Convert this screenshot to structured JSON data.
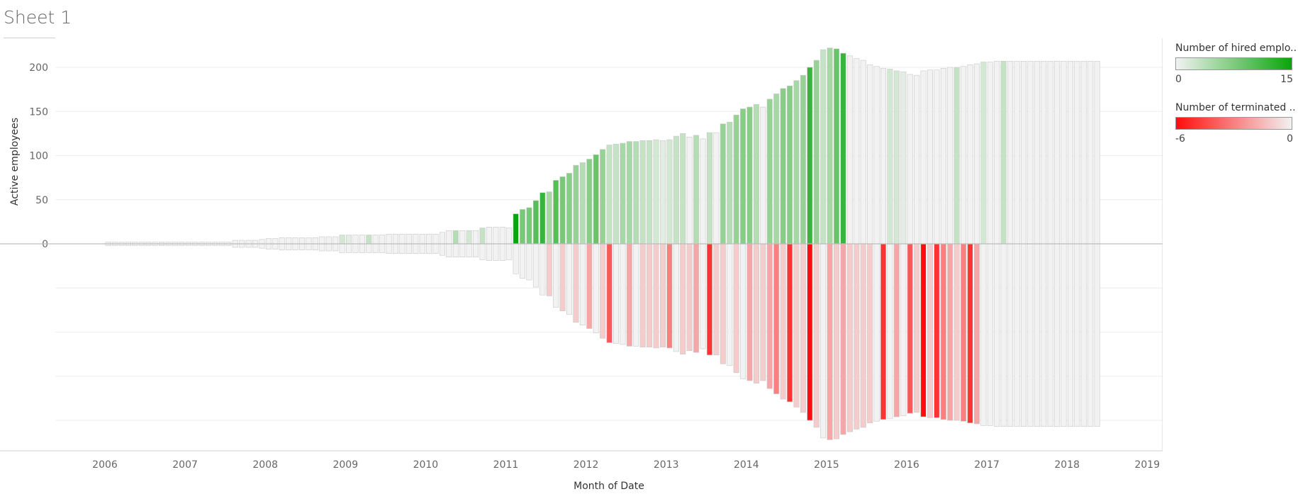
{
  "sheet": {
    "title": "Sheet 1"
  },
  "legends": {
    "hired": {
      "title": "Number of hired emplo..",
      "min_label": "0",
      "max_label": "15",
      "color_low": "#f2f2f2",
      "color_high": "#0aa50a"
    },
    "terminated": {
      "title": "Number of terminated ..",
      "min_label": "-6",
      "max_label": "0",
      "color_low": "#ff0d0d",
      "color_high": "#f2f2f2"
    }
  },
  "chart_data": {
    "type": "bar",
    "ylabel": "Active employees",
    "xlabel": "Month of Date",
    "y_ticks": [
      "200",
      "150",
      "100",
      "50",
      "0"
    ],
    "ylim": [
      -220,
      220
    ],
    "x_ticks": [
      "2006",
      "2007",
      "2008",
      "2009",
      "2010",
      "2011",
      "2012",
      "2013",
      "2014",
      "2015",
      "2016",
      "2017",
      "2018",
      "2019"
    ],
    "x_range_years": [
      2006,
      2019
    ],
    "start": "2006-01",
    "series": [
      {
        "name": "Number of hired employees",
        "color_scale": [
          "#f2f2f2",
          "#0aa50a"
        ],
        "range": [
          0,
          15
        ],
        "values": [
          0,
          0,
          0,
          0,
          0,
          0,
          0,
          0,
          0,
          0,
          0,
          0,
          0,
          0,
          0,
          0,
          0,
          0,
          0,
          0,
          0,
          0,
          0,
          0,
          0,
          0,
          0,
          0,
          0,
          0,
          0,
          0,
          0,
          0,
          0,
          0,
          0,
          0,
          0,
          0,
          0,
          0,
          0,
          0,
          0,
          0,
          0,
          0,
          0,
          0,
          0,
          0,
          0,
          0,
          0,
          0,
          0,
          0,
          0,
          0,
          0,
          0,
          0,
          0,
          0,
          0,
          0,
          0,
          0,
          0,
          0,
          0,
          0,
          0,
          0,
          0,
          0,
          0,
          0,
          0,
          0,
          0,
          0,
          0,
          0,
          0,
          0,
          0,
          0,
          0,
          0,
          0,
          0,
          0,
          0,
          0,
          0,
          0,
          0,
          0,
          0,
          0,
          0,
          0,
          0,
          0,
          0,
          0,
          0,
          0,
          0,
          0,
          0,
          0,
          0,
          0,
          0,
          0,
          0,
          0,
          0,
          0,
          0,
          0,
          0,
          0,
          0,
          0,
          0,
          0,
          0,
          0,
          0,
          0,
          0,
          0,
          0,
          0,
          0,
          0,
          0,
          0,
          0,
          0,
          0,
          0,
          0,
          0,
          0,
          0
        ]
      },
      {
        "name": "Number of terminated employees",
        "color_scale": [
          "#ff0d0d",
          "#f2f2f2"
        ],
        "range": [
          -6,
          0
        ],
        "values": []
      }
    ],
    "active_employees": [
      2,
      2,
      2,
      2,
      2,
      2,
      2,
      2,
      2,
      2,
      2,
      2,
      2,
      2,
      2,
      2,
      2,
      2,
      2,
      4,
      4,
      4,
      4,
      5,
      6,
      6,
      7,
      7,
      7,
      7,
      7,
      7,
      8,
      8,
      8,
      10,
      10,
      10,
      10,
      10,
      10,
      10,
      11,
      11,
      11,
      11,
      11,
      11,
      11,
      11,
      13,
      15,
      15,
      15,
      15,
      15,
      18,
      19,
      19,
      19,
      18,
      34,
      39,
      41,
      49,
      58,
      59,
      72,
      76,
      80,
      89,
      92,
      96,
      101,
      107,
      112,
      113,
      114,
      116,
      116,
      117,
      117,
      118,
      117,
      118,
      122,
      125,
      121,
      123,
      119,
      126,
      126,
      136,
      138,
      146,
      153,
      155,
      158,
      155,
      164,
      170,
      176,
      179,
      185,
      191,
      200,
      208,
      220,
      222,
      221,
      216,
      213,
      210,
      208,
      203,
      201,
      199,
      198,
      196,
      195,
      192,
      191,
      196,
      197,
      197,
      199,
      200,
      200,
      201,
      203,
      204,
      206,
      206,
      207,
      207,
      207,
      207,
      207,
      207,
      207,
      207,
      207,
      207,
      207,
      207,
      207,
      207,
      207,
      207
    ],
    "hired": [
      0,
      0,
      0,
      0,
      0,
      0,
      0,
      0,
      0,
      0,
      0,
      0,
      0,
      0,
      0,
      0,
      0,
      0,
      0,
      0,
      0,
      0,
      0,
      0,
      0,
      0,
      0,
      0,
      0,
      0,
      0,
      0,
      0,
      0,
      0,
      2,
      1,
      0,
      0,
      3,
      0,
      0,
      0,
      0,
      0,
      0,
      0,
      0,
      0,
      0,
      0,
      0,
      4,
      0,
      2,
      0,
      3,
      0,
      0,
      0,
      0,
      15,
      8,
      8,
      10,
      12,
      5,
      10,
      8,
      7,
      6,
      4,
      7,
      9,
      6,
      3,
      3,
      5,
      5,
      4,
      3,
      3,
      2,
      1,
      2,
      3,
      3,
      0,
      4,
      0,
      3,
      0,
      6,
      4,
      6,
      7,
      7,
      4,
      0,
      6,
      5,
      7,
      7,
      5,
      6,
      12,
      6,
      3,
      5,
      9,
      12,
      0,
      0,
      0,
      0,
      0,
      0,
      2,
      2,
      1,
      0,
      0,
      0,
      0,
      0,
      0,
      0,
      3,
      0,
      0,
      0,
      2,
      0,
      0,
      3,
      0,
      0,
      0,
      0,
      0,
      0,
      0,
      0,
      0,
      0,
      0,
      0,
      0,
      0
    ],
    "terminated": [
      0,
      0,
      0,
      0,
      0,
      0,
      0,
      0,
      0,
      0,
      0,
      0,
      0,
      0,
      0,
      0,
      0,
      0,
      0,
      0,
      0,
      0,
      0,
      0,
      0,
      0,
      0,
      0,
      0,
      0,
      0,
      0,
      0,
      0,
      0,
      0,
      0,
      0,
      0,
      0,
      0,
      0,
      0,
      0,
      0,
      0,
      0,
      0,
      0,
      0,
      0,
      0,
      0,
      0,
      0,
      0,
      0,
      0,
      0,
      0,
      0,
      0,
      0,
      0,
      0,
      0,
      -1,
      0,
      -1,
      0,
      -1,
      0,
      -2,
      0,
      -1,
      -4,
      0,
      0,
      -2,
      0,
      -1,
      -1,
      -1,
      -1,
      -3,
      0,
      -1,
      -1,
      -2,
      0,
      -5,
      -1,
      -1,
      0,
      -1,
      0,
      -2,
      -1,
      -1,
      -2,
      -3,
      -1,
      -5,
      -1,
      -1,
      -6,
      -1,
      0,
      -2,
      -1,
      -2,
      -1,
      -1,
      -1,
      -1,
      0,
      -5,
      0,
      -2,
      0,
      -4,
      -1,
      -6,
      -1,
      -5,
      -3,
      -2,
      -1,
      -3,
      -5,
      -2,
      0,
      0,
      0,
      0,
      0,
      0,
      0,
      0,
      0,
      0,
      0,
      0,
      0,
      0,
      0,
      0,
      0,
      0,
      0,
      0,
      0,
      0,
      0,
      0
    ]
  }
}
